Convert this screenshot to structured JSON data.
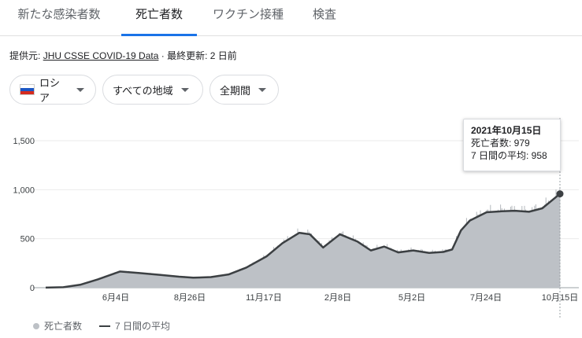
{
  "tabs": [
    {
      "label": "新たな感染者数",
      "active": false
    },
    {
      "label": "死亡者数",
      "active": true
    },
    {
      "label": "ワクチン接種",
      "active": false
    },
    {
      "label": "検査",
      "active": false
    }
  ],
  "source": {
    "prefix": "提供元:",
    "link": "JHU CSSE COVID-19 Data",
    "updated": "· 最終更新: 2 日前"
  },
  "filters": {
    "country": "ロシア",
    "region": "すべての地域",
    "period": "全期間"
  },
  "tooltip": {
    "date": "2021年10月15日",
    "deaths": "死亡者数: 979",
    "avg": "7 日間の平均: 958"
  },
  "legend": {
    "daily": "死亡者数",
    "avg": "7 日間の平均"
  },
  "colors": {
    "accent": "#1a73e8",
    "bars": "#bdc1c6",
    "avg_line": "#3c4043"
  },
  "chart_data": {
    "type": "area",
    "xlabel": "",
    "ylabel": "",
    "ylim": [
      0,
      1500
    ],
    "yticks": [
      0,
      500,
      1000,
      1500
    ],
    "ytick_labels": [
      "0",
      "500",
      "1,000",
      "1,500"
    ],
    "xtick_labels": [
      "6月4日",
      "8月26日",
      "11月17日",
      "2月8日",
      "5月2日",
      "7月24日",
      "10月15日"
    ],
    "x": [
      "2020-03-12",
      "2020-04-01",
      "2020-04-20",
      "2020-05-10",
      "2020-06-04",
      "2020-06-25",
      "2020-07-20",
      "2020-08-10",
      "2020-08-26",
      "2020-09-15",
      "2020-10-05",
      "2020-10-25",
      "2020-11-17",
      "2020-12-05",
      "2020-12-24",
      "2021-01-05",
      "2021-01-20",
      "2021-02-08",
      "2021-02-28",
      "2021-03-15",
      "2021-03-30",
      "2021-04-15",
      "2021-05-02",
      "2021-05-20",
      "2021-06-05",
      "2021-06-15",
      "2021-06-25",
      "2021-07-05",
      "2021-07-24",
      "2021-08-10",
      "2021-08-25",
      "2021-09-10",
      "2021-09-25",
      "2021-10-15"
    ],
    "series": [
      {
        "name": "7 日間の平均",
        "values": [
          1,
          5,
          30,
          85,
          165,
          150,
          130,
          112,
          102,
          108,
          135,
          205,
          320,
          455,
          560,
          545,
          410,
          545,
          470,
          380,
          420,
          360,
          380,
          355,
          365,
          390,
          585,
          685,
          770,
          780,
          785,
          775,
          810,
          958
        ]
      }
    ],
    "highlight": {
      "date": "2021-10-15",
      "deaths": 979,
      "avg": 958
    }
  }
}
